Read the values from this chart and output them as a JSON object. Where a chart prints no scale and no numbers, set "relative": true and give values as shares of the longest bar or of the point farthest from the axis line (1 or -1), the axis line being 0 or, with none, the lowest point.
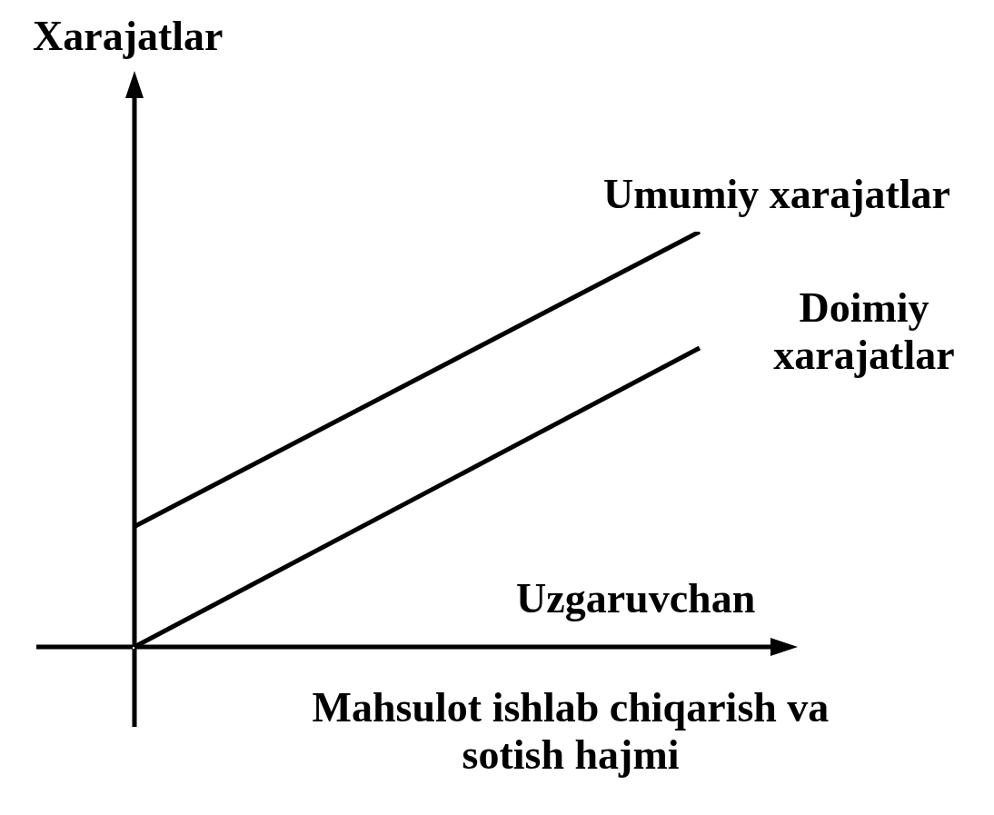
{
  "chart_data": {
    "type": "line",
    "relative": true,
    "ylabel": "Xarajatlar",
    "xlabel": "Mahsulot ishlab chiqarish va sotish hajmi",
    "categories": [
      null,
      null
    ],
    "series": [
      {
        "name": "Umumiy xarajatlar",
        "color": "#000000",
        "values": [
          0.29,
          1
        ]
      },
      {
        "name": "Doimiy xarajatlar",
        "color": "#000000",
        "values": [
          0,
          0.72
        ]
      }
    ],
    "annotations": [
      "Uzgaruvchan"
    ],
    "marker": "none",
    "line_style": "solid",
    "grid": false,
    "legend": false
  }
}
